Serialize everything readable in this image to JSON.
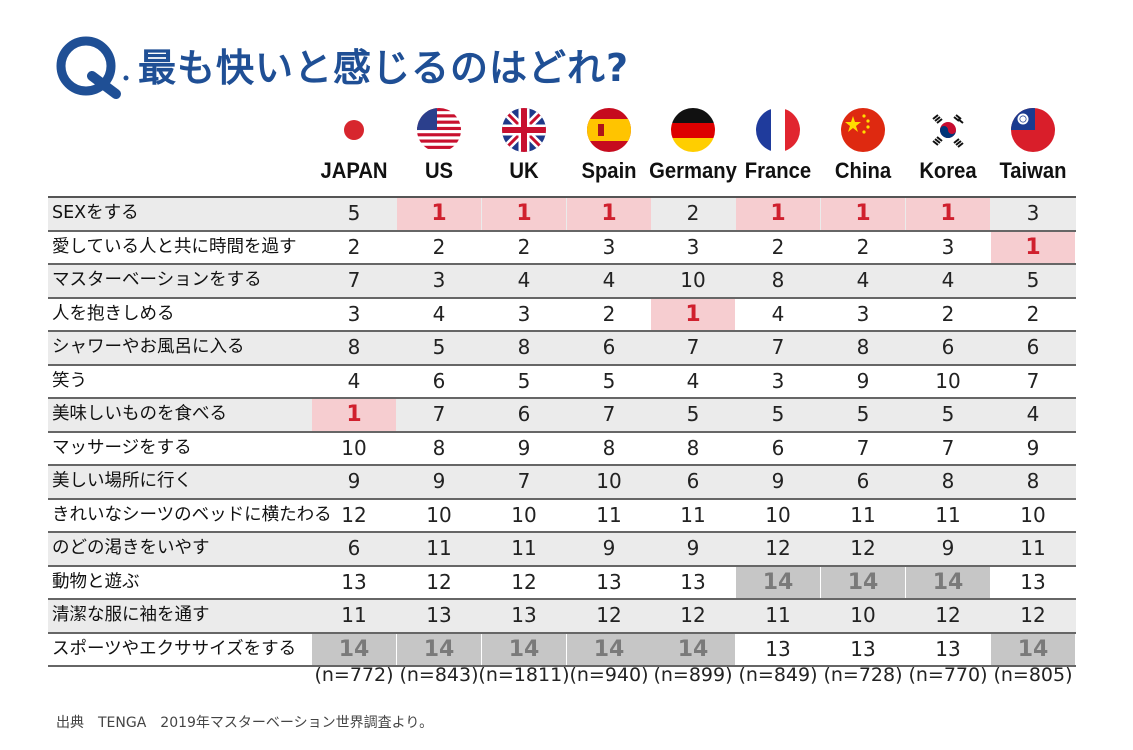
{
  "header": {
    "q_letter": "Q",
    "title": "最も快いと感じるのはどれ?"
  },
  "colors": {
    "brand_blue": "#1f4f95",
    "rank1_bg": "#f6cdd0",
    "rank1_text": "#d0202e",
    "last_bg": "#c6c6c6",
    "last_text": "#7a7a7a",
    "alt_row": "#ebebeb"
  },
  "countries": [
    {
      "name": "JAPAN",
      "flag": "japan-flag-icon",
      "n": "(n=772)"
    },
    {
      "name": "US",
      "flag": "us-flag-icon",
      "n": "(n=843)"
    },
    {
      "name": "UK",
      "flag": "uk-flag-icon",
      "n": "(n=1811)"
    },
    {
      "name": "Spain",
      "flag": "spain-flag-icon",
      "n": "(n=940)"
    },
    {
      "name": "Germany",
      "flag": "germany-flag-icon",
      "n": "(n=899)"
    },
    {
      "name": "France",
      "flag": "france-flag-icon",
      "n": "(n=849)"
    },
    {
      "name": "China",
      "flag": "china-flag-icon",
      "n": "(n=728)"
    },
    {
      "name": "Korea",
      "flag": "korea-flag-icon",
      "n": "(n=770)"
    },
    {
      "name": "Taiwan",
      "flag": "taiwan-flag-icon",
      "n": "(n=805)"
    }
  ],
  "chart_data": {
    "type": "table",
    "title": "最も快いと感じるのはどれ?",
    "columns": [
      "JAPAN",
      "US",
      "UK",
      "Spain",
      "Germany",
      "France",
      "China",
      "Korea",
      "Taiwan"
    ],
    "rows": [
      {
        "label": "SEXをする",
        "values": [
          5,
          1,
          1,
          1,
          2,
          1,
          1,
          1,
          3
        ]
      },
      {
        "label": "愛している人と共に時間を過す",
        "values": [
          2,
          2,
          2,
          3,
          3,
          2,
          2,
          3,
          1
        ]
      },
      {
        "label": "マスターベーションをする",
        "values": [
          7,
          3,
          4,
          4,
          10,
          8,
          4,
          4,
          5
        ]
      },
      {
        "label": "人を抱きしめる",
        "values": [
          3,
          4,
          3,
          2,
          1,
          4,
          3,
          2,
          2
        ]
      },
      {
        "label": "シャワーやお風呂に入る",
        "values": [
          8,
          5,
          8,
          6,
          7,
          7,
          8,
          6,
          6
        ]
      },
      {
        "label": "笑う",
        "values": [
          4,
          6,
          5,
          5,
          4,
          3,
          9,
          10,
          7
        ]
      },
      {
        "label": "美味しいものを食べる",
        "values": [
          1,
          7,
          6,
          7,
          5,
          5,
          5,
          5,
          4
        ]
      },
      {
        "label": "マッサージをする",
        "values": [
          10,
          8,
          9,
          8,
          8,
          6,
          7,
          7,
          9
        ]
      },
      {
        "label": "美しい場所に行く",
        "values": [
          9,
          9,
          7,
          10,
          6,
          9,
          6,
          8,
          8
        ]
      },
      {
        "label": "きれいなシーツのベッドに横たわる",
        "values": [
          12,
          10,
          10,
          11,
          11,
          10,
          11,
          11,
          10
        ]
      },
      {
        "label": "のどの渇きをいやす",
        "values": [
          6,
          11,
          11,
          9,
          9,
          12,
          12,
          9,
          11
        ]
      },
      {
        "label": "動物と遊ぶ",
        "values": [
          13,
          12,
          12,
          13,
          13,
          14,
          14,
          14,
          13
        ]
      },
      {
        "label": "清潔な服に袖を通す",
        "values": [
          11,
          13,
          13,
          12,
          12,
          11,
          10,
          12,
          12
        ]
      },
      {
        "label": "スポーツやエクササイズをする",
        "values": [
          14,
          14,
          14,
          14,
          14,
          13,
          13,
          13,
          14
        ]
      }
    ],
    "highlight_rank1": 1,
    "highlight_last": 14
  },
  "source": "出典　TENGA　2019年マスターベーション世界調査より。"
}
